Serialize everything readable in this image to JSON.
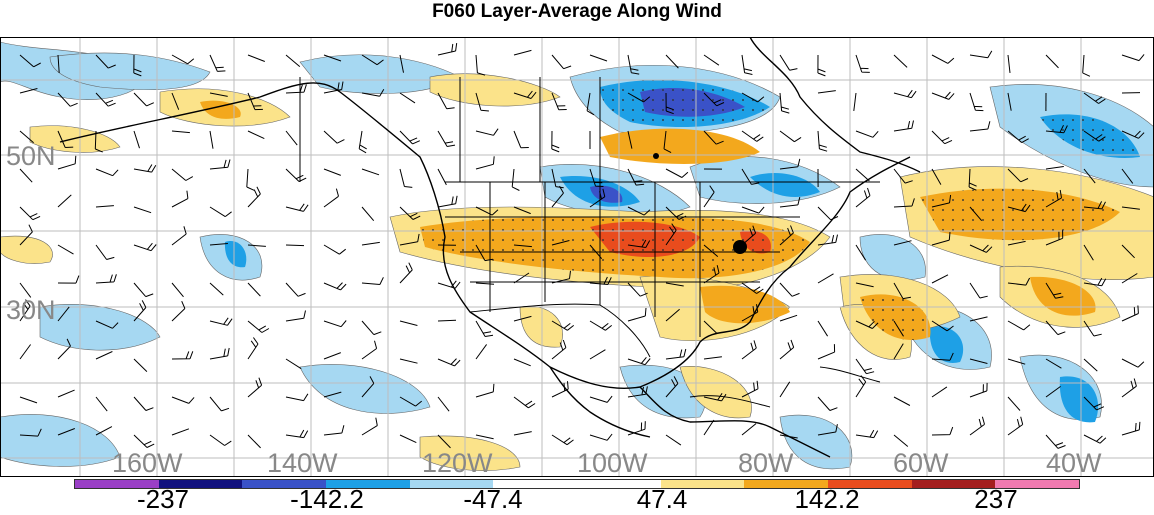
{
  "title": "F060 Layer-Average Along Wind",
  "map": {
    "lat_labels": [
      "50N",
      "30N"
    ],
    "lon_labels": [
      "160W",
      "140W",
      "120W",
      "100W",
      "80W",
      "60W",
      "40W"
    ],
    "markers": [
      "point-marker-nw-ontario",
      "point-marker-appalachia"
    ]
  },
  "colorbar": {
    "colors": [
      "#9a3fc6",
      "#11117e",
      "#3a52c8",
      "#1ea0e6",
      "#a6d8f2",
      "#ffffff",
      "#ffffff",
      "#fbe38a",
      "#f3a81d",
      "#e94c1d",
      "#a41e1e",
      "#f07ab0"
    ],
    "labels": [
      "-237",
      "-142.2",
      "-47.4",
      "47.4",
      "142.2",
      "237"
    ]
  }
}
